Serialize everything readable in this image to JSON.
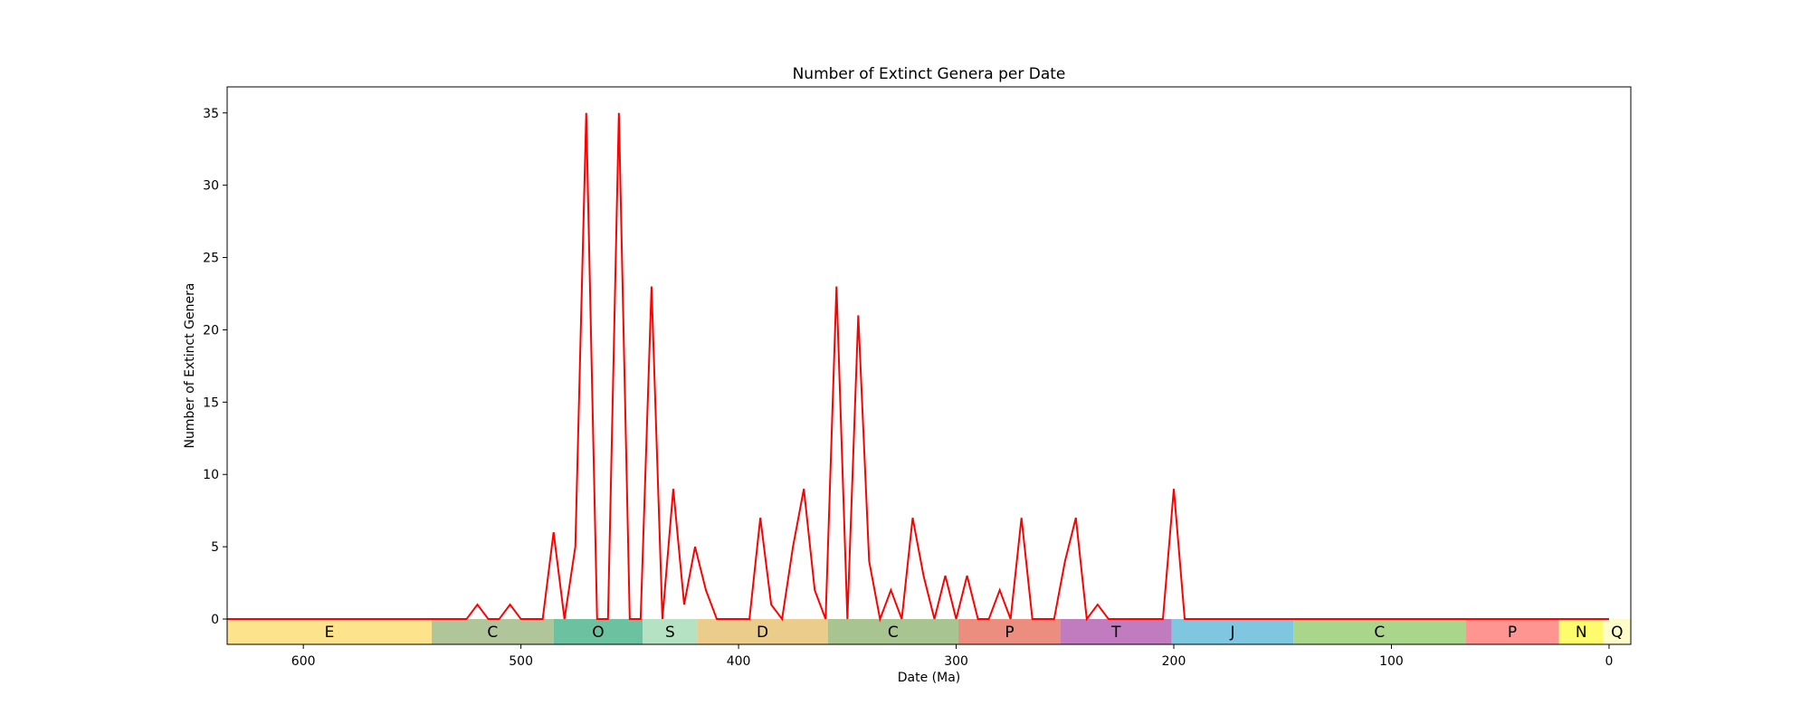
{
  "chart_data": {
    "type": "line",
    "title": "Number of Extinct Genera per Date",
    "xlabel": "Date (Ma)",
    "ylabel": "Number of Extinct Genera",
    "xlim": [
      635,
      -10
    ],
    "ylim": [
      -1.75,
      36.8
    ],
    "x_reversed": true,
    "xticks": [
      600,
      500,
      400,
      300,
      200,
      100,
      0
    ],
    "yticks": [
      0,
      5,
      10,
      15,
      20,
      25,
      30,
      35
    ],
    "grid": false,
    "line_color": "#ff0000",
    "series": [
      {
        "x": [
          635,
          530,
          525,
          520,
          515,
          510,
          505,
          500,
          495,
          490,
          485,
          480,
          475,
          470,
          465,
          460,
          455,
          450,
          445,
          440,
          435,
          430,
          425,
          420,
          415,
          410,
          405,
          400,
          395,
          390,
          385,
          380,
          375,
          370,
          365,
          360,
          355,
          350,
          345,
          340,
          335,
          330,
          325,
          320,
          315,
          310,
          305,
          300,
          295,
          290,
          285,
          280,
          275,
          270,
          265,
          260,
          255,
          250,
          245,
          240,
          235,
          230,
          225,
          220,
          215,
          210,
          205,
          200,
          195,
          0
        ],
        "y": [
          0,
          0,
          0,
          1,
          0,
          0,
          1,
          0,
          0,
          0,
          6,
          0,
          5,
          35,
          0,
          0,
          35,
          0,
          0,
          23,
          0,
          9,
          1,
          5,
          2,
          0,
          0,
          0,
          0,
          7,
          1,
          0,
          5,
          9,
          2,
          0,
          23,
          0,
          21,
          4,
          0,
          2,
          0,
          7,
          3,
          0,
          3,
          0,
          3,
          0,
          0,
          2,
          0,
          7,
          0,
          0,
          0,
          4,
          7,
          0,
          1,
          0,
          0,
          0,
          0,
          0,
          0,
          9,
          0,
          0
        ]
      }
    ],
    "periods": [
      {
        "label": "E",
        "start": 635,
        "end": 541,
        "color": "#fde38c"
      },
      {
        "label": "C",
        "start": 541,
        "end": 485,
        "color": "#b1c59a"
      },
      {
        "label": "O",
        "start": 485,
        "end": 444,
        "color": "#6cc1a0"
      },
      {
        "label": "S",
        "start": 444,
        "end": 419,
        "color": "#b6e2c4"
      },
      {
        "label": "D",
        "start": 419,
        "end": 359,
        "color": "#ebcc8b"
      },
      {
        "label": "C",
        "start": 359,
        "end": 299,
        "color": "#a8c490"
      },
      {
        "label": "P",
        "start": 299,
        "end": 252,
        "color": "#eb8e80"
      },
      {
        "label": "T",
        "start": 252,
        "end": 201,
        "color": "#c17cbf"
      },
      {
        "label": "J",
        "start": 201,
        "end": 145,
        "color": "#7fc6e1"
      },
      {
        "label": "C",
        "start": 145,
        "end": 66,
        "color": "#a9d68a"
      },
      {
        "label": "P",
        "start": 66,
        "end": 23,
        "color": "#ff9590"
      },
      {
        "label": "N",
        "start": 23,
        "end": 2.6,
        "color": "#fefc6c"
      },
      {
        "label": "Q",
        "start": 2.6,
        "end": -10,
        "color": "#fefcc8"
      }
    ]
  }
}
